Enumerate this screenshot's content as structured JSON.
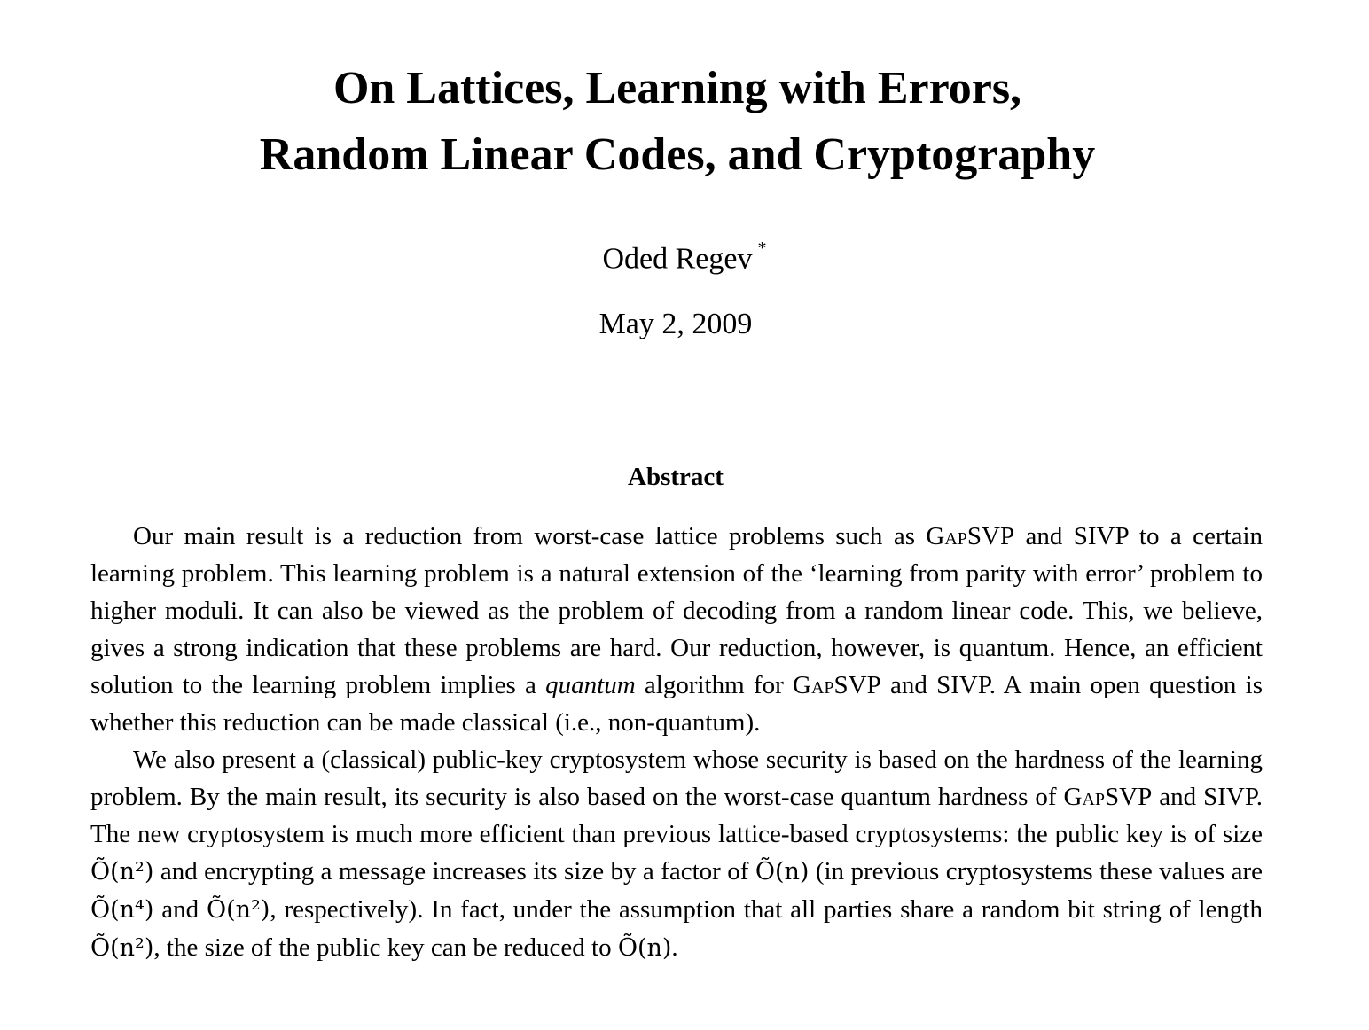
{
  "paper": {
    "title_line1": "On Lattices, Learning with Errors,",
    "title_line2": "Random Linear Codes, and Cryptography",
    "author": "Oded Regev",
    "author_mark": "*",
    "date": "May 2, 2009"
  },
  "abstract": {
    "heading": "Abstract",
    "p1": {
      "s1": "Our main result is a reduction from worst-case lattice problems such as ",
      "gapsvp": "GapSVP",
      "s2": " and SIVP to a certain learning problem. This learning problem is a natural extension of the ‘learning from parity with error’ problem to higher moduli. It can also be viewed as the problem of decoding from a random linear code. This, we believe, gives a strong indication that these problems are hard. Our reduction, however, is quantum. Hence, an efficient solution to the learning problem implies a ",
      "emph": "quantum",
      "s3": " algorithm for ",
      "gapsvp2": "GapSVP",
      "s4": " and SIVP. A main open question is whether this reduction can be made classical (i.e., non-quantum)."
    },
    "p2": {
      "s1": "We also present a (classical) public-key cryptosystem whose security is based on the hardness of the learning problem. By the main result, its security is also based on the worst-case quantum hardness of ",
      "gapsvp": "GapSVP",
      "s2": " and SIVP. The new cryptosystem is much more efficient than previous lattice-based cryptosystems: the public key is of size ",
      "m1": "Õ(n²)",
      "s3": " and encrypting a message increases its size by a factor of ",
      "m2": "Õ(n)",
      "s4": " (in previous cryptosystems these values are ",
      "m3": "Õ(n⁴)",
      "s5": " and ",
      "m4": "Õ(n²)",
      "s6": ", respectively). In fact, under the assumption that all parties share a random bit string of length ",
      "m5": "Õ(n²)",
      "s7": ", the size of the public key can be reduced to ",
      "m6": "Õ(n)",
      "s8": "."
    }
  }
}
